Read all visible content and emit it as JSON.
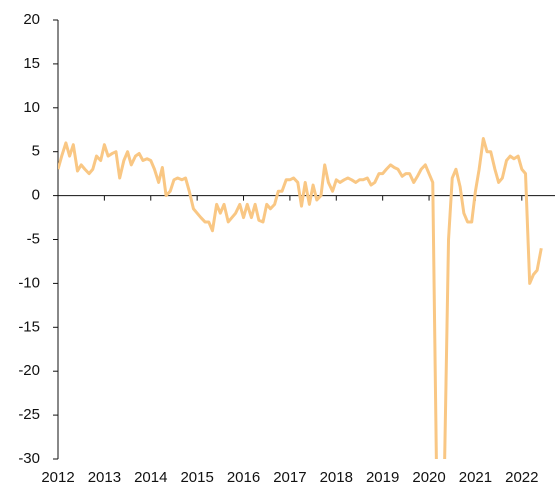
{
  "chart_data": {
    "type": "line",
    "x": [
      2012,
      2012.08,
      2012.17,
      2012.25,
      2012.33,
      2012.42,
      2012.5,
      2012.58,
      2012.67,
      2012.75,
      2012.83,
      2012.92,
      2013,
      2013.08,
      2013.17,
      2013.25,
      2013.33,
      2013.42,
      2013.5,
      2013.58,
      2013.67,
      2013.75,
      2013.83,
      2013.92,
      2014,
      2014.08,
      2014.17,
      2014.25,
      2014.33,
      2014.42,
      2014.5,
      2014.58,
      2014.67,
      2014.75,
      2014.83,
      2014.92,
      2015,
      2015.08,
      2015.17,
      2015.25,
      2015.33,
      2015.42,
      2015.5,
      2015.58,
      2015.67,
      2015.75,
      2015.83,
      2015.92,
      2016,
      2016.08,
      2016.17,
      2016.25,
      2016.33,
      2016.42,
      2016.5,
      2016.58,
      2016.67,
      2016.75,
      2016.83,
      2016.92,
      2017,
      2017.08,
      2017.17,
      2017.25,
      2017.33,
      2017.42,
      2017.5,
      2017.58,
      2017.67,
      2017.75,
      2017.83,
      2017.92,
      2018,
      2018.08,
      2018.17,
      2018.25,
      2018.33,
      2018.42,
      2018.5,
      2018.58,
      2018.67,
      2018.75,
      2018.83,
      2018.92,
      2019,
      2019.08,
      2019.17,
      2019.25,
      2019.33,
      2019.42,
      2019.5,
      2019.58,
      2019.67,
      2019.75,
      2019.83,
      2019.92,
      2020,
      2020.08,
      2020.17,
      2020.25,
      2020.33,
      2020.42,
      2020.5,
      2020.58,
      2020.67,
      2020.75,
      2020.83,
      2020.92,
      2021,
      2021.08,
      2021.17,
      2021.25,
      2021.33,
      2021.42,
      2021.5,
      2021.58,
      2021.67,
      2021.75,
      2021.83,
      2021.92,
      2022,
      2022.08,
      2022.17,
      2022.25,
      2022.33,
      2022.42
    ],
    "series": [
      {
        "color": "#f9c784",
        "values": [
          3,
          4.5,
          6,
          4.5,
          5.8,
          2.8,
          3.5,
          3,
          2.5,
          3,
          4.5,
          4,
          5.8,
          4.5,
          4.8,
          5,
          2,
          4,
          5,
          3.5,
          4.5,
          4.8,
          4,
          4.2,
          4,
          3,
          1.5,
          3.2,
          0,
          0.5,
          1.8,
          2,
          1.8,
          2,
          0.5,
          -1.5,
          -2,
          -2.5,
          -3,
          -3,
          -4,
          -1,
          -2,
          -1,
          -3,
          -2.5,
          -2,
          -1,
          -2.5,
          -1,
          -2.5,
          -1,
          -2.8,
          -3,
          -1,
          -1.5,
          -1,
          0.5,
          0.5,
          1.8,
          1.8,
          2,
          1.5,
          -1.2,
          1.5,
          -1,
          1.2,
          -0.5,
          0,
          3.5,
          1.5,
          0.5,
          1.8,
          1.5,
          1.8,
          2,
          1.8,
          1.5,
          1.8,
          1.8,
          2,
          1.2,
          1.5,
          2.5,
          2.5,
          3,
          3.5,
          3.2,
          3,
          2.2,
          2.5,
          2.5,
          1.5,
          2.2,
          3,
          3.5,
          2.5,
          1.5,
          -35,
          -36,
          -32,
          -5,
          2,
          3,
          1,
          -2,
          -3,
          -3,
          0.5,
          3,
          6.5,
          5,
          5,
          3,
          1.5,
          2,
          4,
          4.5,
          4.2,
          4.5,
          3,
          2.5,
          -10,
          -9,
          -8.5,
          -6
        ]
      }
    ],
    "xlim": [
      2012,
      2022.5
    ],
    "xticks": [
      2012,
      2013,
      2014,
      2015,
      2016,
      2017,
      2018,
      2019,
      2020,
      2021,
      2022
    ],
    "ylim": [
      -30,
      20
    ],
    "yticks": [
      -30,
      -25,
      -20,
      -15,
      -10,
      -5,
      0,
      5,
      10,
      15,
      20
    ]
  }
}
